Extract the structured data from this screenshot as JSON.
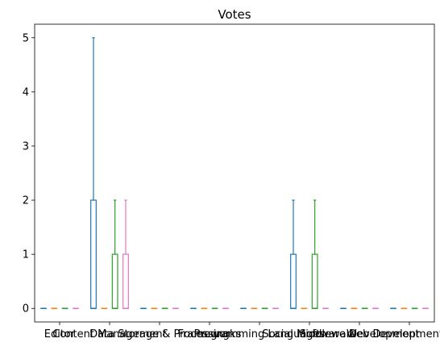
{
  "chart_data": {
    "type": "box",
    "title": "Votes",
    "xlabel": "",
    "ylabel": "",
    "ylim": [
      -0.25,
      5.25
    ],
    "yticks": [
      0,
      1,
      2,
      3,
      4,
      5
    ],
    "grid": false,
    "legend": "none",
    "categories": [
      "Editor",
      "Content Management",
      "Data Storage & Processing",
      "Frameworks",
      "Programming Languages",
      "Social Middleware",
      "Software Development",
      "Web Development Tools"
    ],
    "series": [
      {
        "color": "#1f77b4",
        "boxes": [
          {
            "min": 0,
            "q1": 0,
            "median": 0,
            "q3": 0,
            "max": 0
          },
          {
            "min": 0,
            "q1": 0,
            "median": 0,
            "q3": 2,
            "max": 5
          },
          {
            "min": 0,
            "q1": 0,
            "median": 0,
            "q3": 0,
            "max": 0
          },
          {
            "min": 0,
            "q1": 0,
            "median": 0,
            "q3": 0,
            "max": 0
          },
          {
            "min": 0,
            "q1": 0,
            "median": 0,
            "q3": 0,
            "max": 0
          },
          {
            "min": 0,
            "q1": 0,
            "median": 0,
            "q3": 1,
            "max": 2
          },
          {
            "min": 0,
            "q1": 0,
            "median": 0,
            "q3": 0,
            "max": 0
          },
          {
            "min": 0,
            "q1": 0,
            "median": 0,
            "q3": 0,
            "max": 0
          }
        ]
      },
      {
        "color": "#ff7f0e",
        "boxes": [
          {
            "min": 0,
            "q1": 0,
            "median": 0,
            "q3": 0,
            "max": 0
          },
          {
            "min": 0,
            "q1": 0,
            "median": 0,
            "q3": 0,
            "max": 0
          },
          {
            "min": 0,
            "q1": 0,
            "median": 0,
            "q3": 0,
            "max": 0
          },
          {
            "min": 0,
            "q1": 0,
            "median": 0,
            "q3": 0,
            "max": 0
          },
          {
            "min": 0,
            "q1": 0,
            "median": 0,
            "q3": 0,
            "max": 0
          },
          {
            "min": 0,
            "q1": 0,
            "median": 0,
            "q3": 0,
            "max": 0
          },
          {
            "min": 0,
            "q1": 0,
            "median": 0,
            "q3": 0,
            "max": 0
          },
          {
            "min": 0,
            "q1": 0,
            "median": 0,
            "q3": 0,
            "max": 0
          }
        ]
      },
      {
        "color": "#2ca02c",
        "boxes": [
          {
            "min": 0,
            "q1": 0,
            "median": 0,
            "q3": 0,
            "max": 0
          },
          {
            "min": 0,
            "q1": 0,
            "median": 0,
            "q3": 1,
            "max": 2
          },
          {
            "min": 0,
            "q1": 0,
            "median": 0,
            "q3": 0,
            "max": 0
          },
          {
            "min": 0,
            "q1": 0,
            "median": 0,
            "q3": 0,
            "max": 0
          },
          {
            "min": 0,
            "q1": 0,
            "median": 0,
            "q3": 0,
            "max": 0
          },
          {
            "min": 0,
            "q1": 0,
            "median": 0,
            "q3": 1,
            "max": 2
          },
          {
            "min": 0,
            "q1": 0,
            "median": 0,
            "q3": 0,
            "max": 0
          },
          {
            "min": 0,
            "q1": 0,
            "median": 0,
            "q3": 0,
            "max": 0
          }
        ]
      },
      {
        "color": "#e377c2",
        "boxes": [
          {
            "min": 0,
            "q1": 0,
            "median": 0,
            "q3": 0,
            "max": 0
          },
          {
            "min": 0,
            "q1": 0,
            "median": 0,
            "q3": 1,
            "max": 2
          },
          {
            "min": 0,
            "q1": 0,
            "median": 0,
            "q3": 0,
            "max": 0
          },
          {
            "min": 0,
            "q1": 0,
            "median": 0,
            "q3": 0,
            "max": 0
          },
          {
            "min": 0,
            "q1": 0,
            "median": 0,
            "q3": 0,
            "max": 0
          },
          {
            "min": 0,
            "q1": 0,
            "median": 0,
            "q3": 0,
            "max": 0
          },
          {
            "min": 0,
            "q1": 0,
            "median": 0,
            "q3": 0,
            "max": 0
          },
          {
            "min": 0,
            "q1": 0,
            "median": 0,
            "q3": 0,
            "max": 0
          }
        ]
      }
    ]
  }
}
